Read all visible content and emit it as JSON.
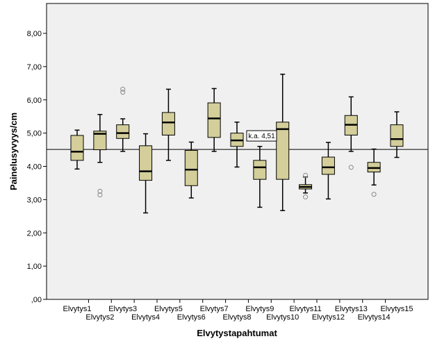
{
  "chart_data": {
    "type": "boxplot",
    "xlabel": "Elvytystapahtumat",
    "ylabel": "Painelusyvyys/cm",
    "ylim": [
      0,
      9
    ],
    "yticks": [
      0,
      1,
      2,
      3,
      4,
      5,
      6,
      7,
      8
    ],
    "ytick_labels": [
      ",00",
      "1,00",
      "2,00",
      "3,00",
      "4,00",
      "5,00",
      "6,00",
      "7,00",
      "8,00"
    ],
    "reference_line": {
      "value": 4.51,
      "label": "k.a. 4,51"
    },
    "colors": {
      "plot_bg": "#f0f0f0",
      "box_fill": "#d3ce9a",
      "box_stroke": "#000000"
    },
    "grid": false,
    "categories": [
      "Elvytys1",
      "Elvytys2",
      "Elvytys3",
      "Elvytys4",
      "Elvytys5",
      "Elvytys6",
      "Elvytys7",
      "Elvytys8",
      "Elvytys9",
      "Elvytys10",
      "Elvytys11",
      "Elvytys12",
      "Elvytys13",
      "Elvytys14",
      "Elvytys15"
    ],
    "boxes": [
      {
        "min": 3.92,
        "q1": 4.18,
        "median": 4.44,
        "q3": 4.93,
        "max": 5.09,
        "outliers": []
      },
      {
        "min": 4.12,
        "q1": 4.5,
        "median": 4.98,
        "q3": 5.06,
        "max": 5.56,
        "outliers": [
          3.25,
          3.14
        ]
      },
      {
        "min": 4.45,
        "q1": 4.84,
        "median": 5.0,
        "q3": 5.25,
        "max": 5.43,
        "outliers": [
          6.32,
          6.23
        ]
      },
      {
        "min": 2.6,
        "q1": 3.58,
        "median": 3.85,
        "q3": 4.62,
        "max": 4.98,
        "outliers": []
      },
      {
        "min": 4.18,
        "q1": 4.94,
        "median": 5.32,
        "q3": 5.62,
        "max": 6.32,
        "outliers": []
      },
      {
        "min": 3.05,
        "q1": 3.42,
        "median": 3.9,
        "q3": 4.48,
        "max": 4.73,
        "outliers": []
      },
      {
        "min": 4.45,
        "q1": 4.87,
        "median": 5.44,
        "q3": 5.91,
        "max": 6.34,
        "outliers": []
      },
      {
        "min": 3.98,
        "q1": 4.6,
        "median": 4.78,
        "q3": 5.0,
        "max": 5.33,
        "outliers": []
      },
      {
        "min": 2.77,
        "q1": 3.61,
        "median": 3.97,
        "q3": 4.18,
        "max": 4.6,
        "outliers": []
      },
      {
        "min": 2.67,
        "q1": 3.61,
        "median": 5.12,
        "q3": 5.33,
        "max": 6.77,
        "outliers": []
      },
      {
        "min": 3.2,
        "q1": 3.32,
        "median": 3.38,
        "q3": 3.45,
        "max": 3.68,
        "outliers": [
          3.73,
          3.08
        ]
      },
      {
        "min": 3.02,
        "q1": 3.76,
        "median": 3.97,
        "q3": 4.28,
        "max": 4.72,
        "outliers": []
      },
      {
        "min": 4.45,
        "q1": 4.94,
        "median": 5.25,
        "q3": 5.53,
        "max": 6.09,
        "outliers": [
          3.97
        ]
      },
      {
        "min": 3.44,
        "q1": 3.83,
        "median": 3.95,
        "q3": 4.12,
        "max": 4.52,
        "outliers": [
          3.16
        ]
      },
      {
        "min": 4.27,
        "q1": 4.6,
        "median": 4.82,
        "q3": 5.25,
        "max": 5.64,
        "outliers": []
      }
    ]
  }
}
